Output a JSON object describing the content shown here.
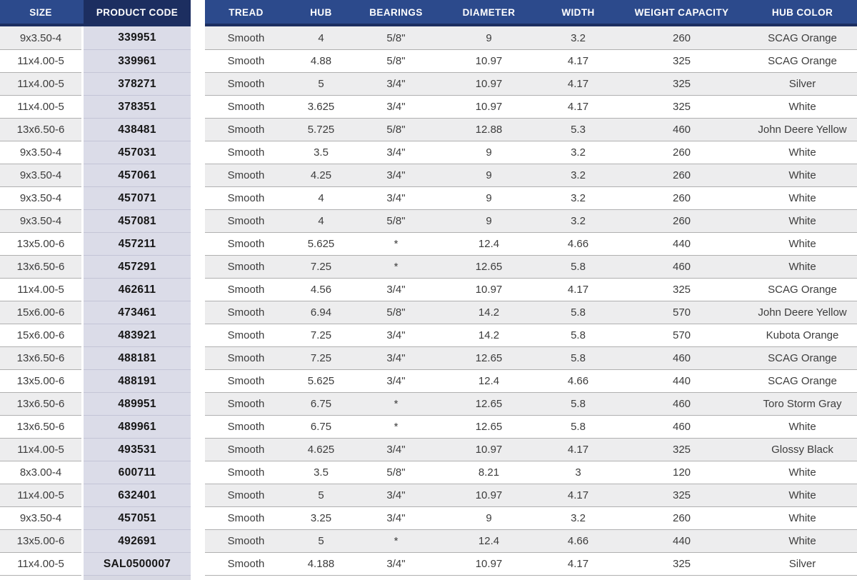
{
  "table": {
    "columns": [
      {
        "key": "size",
        "label": "SIZE"
      },
      {
        "key": "product_code",
        "label": "PRODUCT CODE"
      },
      {
        "key": "tread",
        "label": "TREAD"
      },
      {
        "key": "hub",
        "label": "HUB"
      },
      {
        "key": "bearings",
        "label": "BEARINGS"
      },
      {
        "key": "diameter",
        "label": "DIAMETER"
      },
      {
        "key": "width",
        "label": "WIDTH"
      },
      {
        "key": "weight_capacity",
        "label": "WEIGHT CAPACITY"
      },
      {
        "key": "hub_color",
        "label": "HUB COLOR"
      }
    ],
    "rows": [
      {
        "size": "9x3.50-4",
        "product_code": "339951",
        "tread": "Smooth",
        "hub": "4",
        "bearings": "5/8\"",
        "diameter": "9",
        "width": "3.2",
        "weight_capacity": "260",
        "hub_color": "SCAG Orange"
      },
      {
        "size": "11x4.00-5",
        "product_code": "339961",
        "tread": "Smooth",
        "hub": "4.88",
        "bearings": "5/8\"",
        "diameter": "10.97",
        "width": "4.17",
        "weight_capacity": "325",
        "hub_color": "SCAG Orange"
      },
      {
        "size": "11x4.00-5",
        "product_code": "378271",
        "tread": "Smooth",
        "hub": "5",
        "bearings": "3/4\"",
        "diameter": "10.97",
        "width": "4.17",
        "weight_capacity": "325",
        "hub_color": "Silver"
      },
      {
        "size": "11x4.00-5",
        "product_code": "378351",
        "tread": "Smooth",
        "hub": "3.625",
        "bearings": "3/4\"",
        "diameter": "10.97",
        "width": "4.17",
        "weight_capacity": "325",
        "hub_color": "White"
      },
      {
        "size": "13x6.50-6",
        "product_code": "438481",
        "tread": "Smooth",
        "hub": "5.725",
        "bearings": "5/8\"",
        "diameter": "12.88",
        "width": "5.3",
        "weight_capacity": "460",
        "hub_color": "John Deere Yellow"
      },
      {
        "size": "9x3.50-4",
        "product_code": "457031",
        "tread": "Smooth",
        "hub": "3.5",
        "bearings": "3/4\"",
        "diameter": "9",
        "width": "3.2",
        "weight_capacity": "260",
        "hub_color": "White"
      },
      {
        "size": "9x3.50-4",
        "product_code": "457061",
        "tread": "Smooth",
        "hub": "4.25",
        "bearings": "3/4\"",
        "diameter": "9",
        "width": "3.2",
        "weight_capacity": "260",
        "hub_color": "White"
      },
      {
        "size": "9x3.50-4",
        "product_code": "457071",
        "tread": "Smooth",
        "hub": "4",
        "bearings": "3/4\"",
        "diameter": "9",
        "width": "3.2",
        "weight_capacity": "260",
        "hub_color": "White"
      },
      {
        "size": "9x3.50-4",
        "product_code": "457081",
        "tread": "Smooth",
        "hub": "4",
        "bearings": "5/8\"",
        "diameter": "9",
        "width": "3.2",
        "weight_capacity": "260",
        "hub_color": "White"
      },
      {
        "size": "13x5.00-6",
        "product_code": "457211",
        "tread": "Smooth",
        "hub": "5.625",
        "bearings": "*",
        "diameter": "12.4",
        "width": "4.66",
        "weight_capacity": "440",
        "hub_color": "White"
      },
      {
        "size": "13x6.50-6",
        "product_code": "457291",
        "tread": "Smooth",
        "hub": "7.25",
        "bearings": "*",
        "diameter": "12.65",
        "width": "5.8",
        "weight_capacity": "460",
        "hub_color": "White"
      },
      {
        "size": "11x4.00-5",
        "product_code": "462611",
        "tread": "Smooth",
        "hub": "4.56",
        "bearings": "3/4\"",
        "diameter": "10.97",
        "width": "4.17",
        "weight_capacity": "325",
        "hub_color": "SCAG Orange"
      },
      {
        "size": "15x6.00-6",
        "product_code": "473461",
        "tread": "Smooth",
        "hub": "6.94",
        "bearings": "5/8\"",
        "diameter": "14.2",
        "width": "5.8",
        "weight_capacity": "570",
        "hub_color": "John Deere Yellow"
      },
      {
        "size": "15x6.00-6",
        "product_code": "483921",
        "tread": "Smooth",
        "hub": "7.25",
        "bearings": "3/4\"",
        "diameter": "14.2",
        "width": "5.8",
        "weight_capacity": "570",
        "hub_color": "Kubota Orange"
      },
      {
        "size": "13x6.50-6",
        "product_code": "488181",
        "tread": "Smooth",
        "hub": "7.25",
        "bearings": "3/4\"",
        "diameter": "12.65",
        "width": "5.8",
        "weight_capacity": "460",
        "hub_color": "SCAG Orange"
      },
      {
        "size": "13x5.00-6",
        "product_code": "488191",
        "tread": "Smooth",
        "hub": "5.625",
        "bearings": "3/4\"",
        "diameter": "12.4",
        "width": "4.66",
        "weight_capacity": "440",
        "hub_color": "SCAG Orange"
      },
      {
        "size": "13x6.50-6",
        "product_code": "489951",
        "tread": "Smooth",
        "hub": "6.75",
        "bearings": "*",
        "diameter": "12.65",
        "width": "5.8",
        "weight_capacity": "460",
        "hub_color": "Toro Storm Gray"
      },
      {
        "size": "13x6.50-6",
        "product_code": "489961",
        "tread": "Smooth",
        "hub": "6.75",
        "bearings": "*",
        "diameter": "12.65",
        "width": "5.8",
        "weight_capacity": "460",
        "hub_color": "White"
      },
      {
        "size": "11x4.00-5",
        "product_code": "493531",
        "tread": "Smooth",
        "hub": "4.625",
        "bearings": "3/4\"",
        "diameter": "10.97",
        "width": "4.17",
        "weight_capacity": "325",
        "hub_color": "Glossy Black"
      },
      {
        "size": "8x3.00-4",
        "product_code": "600711",
        "tread": "Smooth",
        "hub": "3.5",
        "bearings": "5/8\"",
        "diameter": "8.21",
        "width": "3",
        "weight_capacity": "120",
        "hub_color": "White"
      },
      {
        "size": "11x4.00-5",
        "product_code": "632401",
        "tread": "Smooth",
        "hub": "5",
        "bearings": "3/4\"",
        "diameter": "10.97",
        "width": "4.17",
        "weight_capacity": "325",
        "hub_color": "White"
      },
      {
        "size": "9x3.50-4",
        "product_code": "457051",
        "tread": "Smooth",
        "hub": "3.25",
        "bearings": "3/4\"",
        "diameter": "9",
        "width": "3.2",
        "weight_capacity": "260",
        "hub_color": "White"
      },
      {
        "size": "13x5.00-6",
        "product_code": "492691",
        "tread": "Smooth",
        "hub": "5",
        "bearings": "*",
        "diameter": "12.4",
        "width": "4.66",
        "weight_capacity": "440",
        "hub_color": "White"
      },
      {
        "size": "11x4.00-5",
        "product_code": "SAL0500007",
        "tread": "Smooth",
        "hub": "4.188",
        "bearings": "3/4\"",
        "diameter": "10.97",
        "width": "4.17",
        "weight_capacity": "325",
        "hub_color": "Silver"
      }
    ]
  },
  "colors": {
    "header_blue": "#2c4a8c",
    "header_dark_strip": "#1c2e60",
    "product_code_header": "#1c2e60",
    "product_code_column": "#dbdce8",
    "row_stripe_gray": "#ededee",
    "row_white": "#ffffff",
    "row_border": "#b0b0b0",
    "header_text": "#ffffff",
    "cell_text": "#3c3c3c"
  }
}
